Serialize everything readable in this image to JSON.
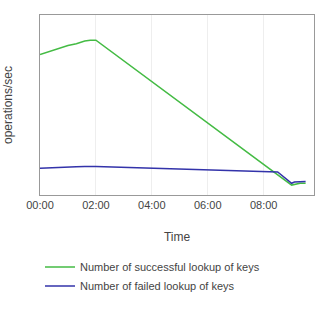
{
  "chart_data": {
    "type": "line",
    "xlabel": "Time",
    "ylabel": "operations/sec",
    "series": [
      {
        "name": "Number of successful lookup of keys",
        "color": "#44bb44",
        "x": [
          0.0,
          0.4,
          0.8,
          1.0,
          1.3,
          1.6,
          1.8,
          2.0,
          9.0,
          9.3,
          9.5
        ],
        "values": [
          0.78,
          0.8,
          0.82,
          0.83,
          0.84,
          0.855,
          0.86,
          0.86,
          0.055,
          0.065,
          0.065
        ]
      },
      {
        "name": "Number of failed lookup of keys",
        "color": "#3333aa",
        "x": [
          0.0,
          0.4,
          0.8,
          1.0,
          1.3,
          1.6,
          1.8,
          2.0,
          8.5,
          9.0,
          9.1,
          9.3,
          9.5
        ],
        "values": [
          0.148,
          0.152,
          0.155,
          0.156,
          0.157,
          0.158,
          0.158,
          0.158,
          0.128,
          0.065,
          0.072,
          0.075,
          0.075
        ]
      }
    ],
    "xlim": [
      0.0,
      9.8
    ],
    "ylim": [
      0.0,
      1.0
    ],
    "xticks": [
      {
        "value": 0,
        "label": "00:00"
      },
      {
        "value": 2,
        "label": "02:00"
      },
      {
        "value": 4,
        "label": "04:00"
      },
      {
        "value": 6,
        "label": "06:00"
      },
      {
        "value": 8,
        "label": "08:00"
      }
    ],
    "yticks": [],
    "grid": true,
    "tick_labels": "x",
    "legend": "bottom"
  }
}
